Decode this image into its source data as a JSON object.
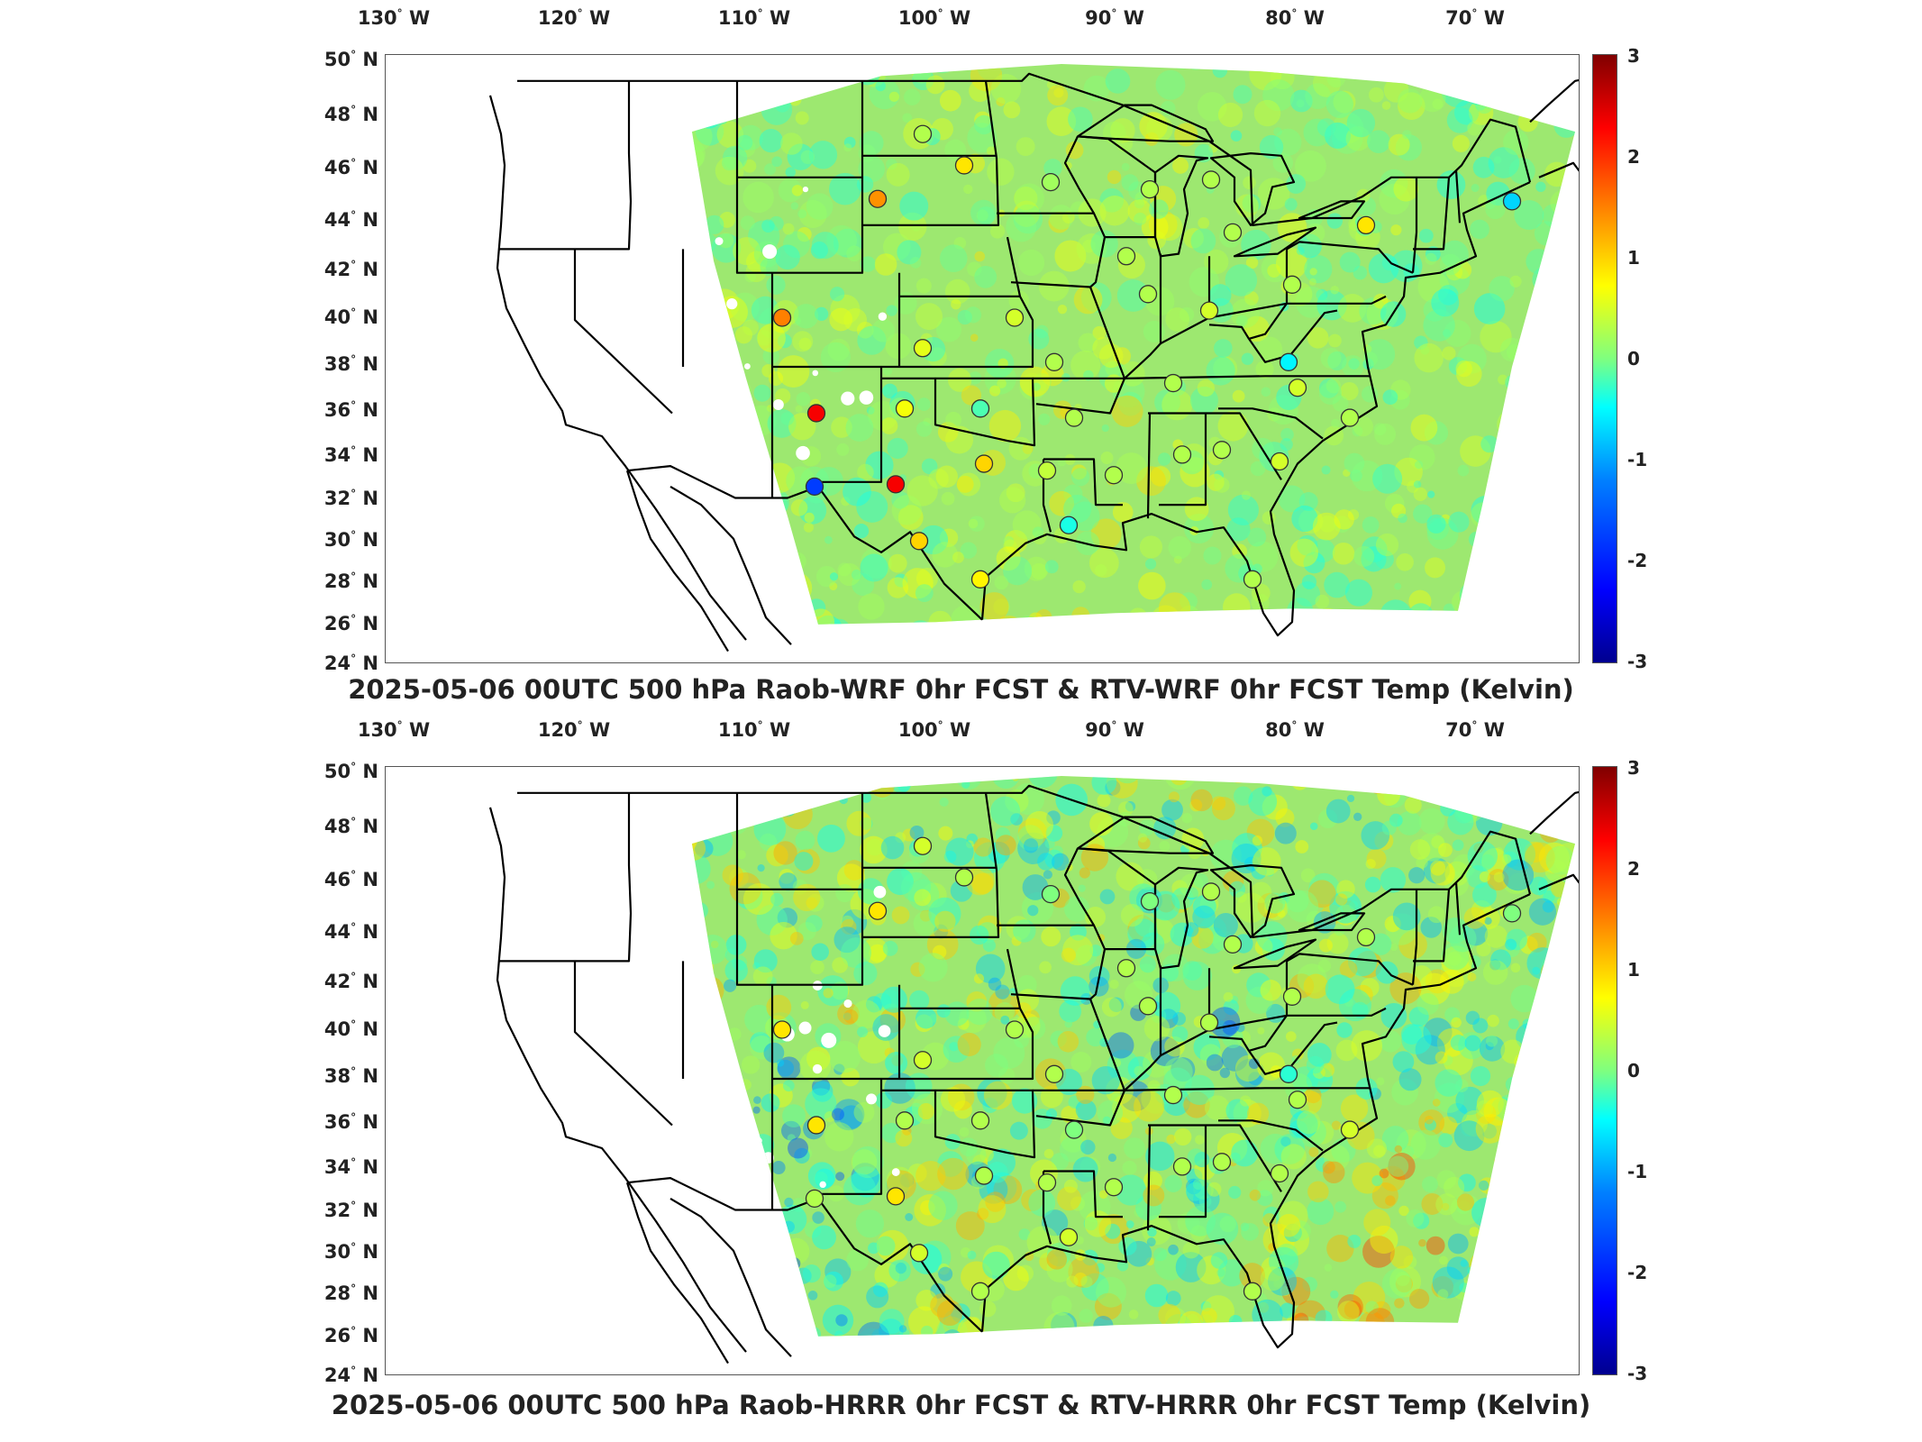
{
  "panels": [
    {
      "title": "2025-05-06 00UTC 500 hPa Raob-WRF 0hr FCST & RTV-WRF 0hr FCST Temp (Kelvin)",
      "lon_labels": [
        "130",
        "120",
        "110",
        "100",
        "90",
        "80",
        "70"
      ],
      "lat_labels": [
        "50",
        "48",
        "46",
        "44",
        "42",
        "40",
        "38",
        "36",
        "34",
        "32",
        "30",
        "28",
        "26",
        "24"
      ],
      "lon_suffix": "W",
      "lat_suffix": "N",
      "colorbar_ticks": [
        "3",
        "2",
        "1",
        "0",
        "-1",
        "-2",
        "-3"
      ],
      "stations": [
        {
          "lon": -100.7,
          "lat": 46.8,
          "v": 0.3
        },
        {
          "lon": -98.4,
          "lat": 45.5,
          "v": 0.9
        },
        {
          "lon": -103.2,
          "lat": 44.1,
          "v": 1.4
        },
        {
          "lon": -93.6,
          "lat": 44.8,
          "v": 0.2
        },
        {
          "lon": -88.1,
          "lat": 44.5,
          "v": 0.3
        },
        {
          "lon": -84.7,
          "lat": 44.9,
          "v": 0.3
        },
        {
          "lon": -68.0,
          "lat": 44.0,
          "v": -1.0
        },
        {
          "lon": -89.4,
          "lat": 41.7,
          "v": 0.3
        },
        {
          "lon": -83.5,
          "lat": 42.7,
          "v": 0.3
        },
        {
          "lon": -76.1,
          "lat": 43.0,
          "v": 0.9
        },
        {
          "lon": -108.5,
          "lat": 39.1,
          "v": 1.5
        },
        {
          "lon": -88.2,
          "lat": 40.1,
          "v": 0.3
        },
        {
          "lon": -80.2,
          "lat": 40.5,
          "v": 0.3
        },
        {
          "lon": -95.6,
          "lat": 39.1,
          "v": 0.5
        },
        {
          "lon": -84.8,
          "lat": 39.4,
          "v": 0.5
        },
        {
          "lon": -100.7,
          "lat": 37.8,
          "v": 0.6
        },
        {
          "lon": -93.4,
          "lat": 37.2,
          "v": 0.3
        },
        {
          "lon": -80.4,
          "lat": 37.2,
          "v": -0.8
        },
        {
          "lon": -86.8,
          "lat": 36.3,
          "v": 0.3
        },
        {
          "lon": -79.9,
          "lat": 36.1,
          "v": 0.5
        },
        {
          "lon": -106.6,
          "lat": 35.0,
          "v": 2.3
        },
        {
          "lon": -101.7,
          "lat": 35.2,
          "v": 0.7
        },
        {
          "lon": -97.5,
          "lat": 35.2,
          "v": -0.3
        },
        {
          "lon": -92.3,
          "lat": 34.8,
          "v": 0.3
        },
        {
          "lon": -77.0,
          "lat": 34.8,
          "v": 0.3
        },
        {
          "lon": -97.3,
          "lat": 32.8,
          "v": 1.0
        },
        {
          "lon": -93.8,
          "lat": 32.5,
          "v": 0.4
        },
        {
          "lon": -90.1,
          "lat": 32.3,
          "v": 0.3
        },
        {
          "lon": -86.3,
          "lat": 33.2,
          "v": 0.3
        },
        {
          "lon": -84.1,
          "lat": 33.4,
          "v": 0.3
        },
        {
          "lon": -80.9,
          "lat": 32.9,
          "v": 0.5
        },
        {
          "lon": -106.7,
          "lat": 31.8,
          "v": -1.9
        },
        {
          "lon": -102.2,
          "lat": 31.9,
          "v": 2.3
        },
        {
          "lon": -92.6,
          "lat": 30.1,
          "v": -0.6
        },
        {
          "lon": -100.9,
          "lat": 29.4,
          "v": 1.0
        },
        {
          "lon": -97.5,
          "lat": 27.7,
          "v": 0.8
        },
        {
          "lon": -82.4,
          "lat": 27.7,
          "v": 0.3
        }
      ]
    },
    {
      "title": "2025-05-06 00UTC 500 hPa Raob-HRRR 0hr FCST & RTV-HRRR 0hr FCST Temp (Kelvin)",
      "lon_labels": [
        "130",
        "120",
        "110",
        "100",
        "90",
        "80",
        "70"
      ],
      "lat_labels": [
        "50",
        "48",
        "46",
        "44",
        "42",
        "40",
        "38",
        "36",
        "34",
        "32",
        "30",
        "28",
        "26",
        "24"
      ],
      "lon_suffix": "W",
      "lat_suffix": "N",
      "colorbar_ticks": [
        "3",
        "2",
        "1",
        "0",
        "-1",
        "-2",
        "-3"
      ],
      "stations": [
        {
          "lon": -100.7,
          "lat": 46.8,
          "v": 0.5
        },
        {
          "lon": -98.4,
          "lat": 45.5,
          "v": 0.3
        },
        {
          "lon": -103.2,
          "lat": 44.1,
          "v": 0.9
        },
        {
          "lon": -93.6,
          "lat": 44.8,
          "v": 0.0
        },
        {
          "lon": -88.1,
          "lat": 44.5,
          "v": 0.0
        },
        {
          "lon": -84.7,
          "lat": 44.9,
          "v": 0.3
        },
        {
          "lon": -68.0,
          "lat": 44.0,
          "v": 0.0
        },
        {
          "lon": -89.4,
          "lat": 41.7,
          "v": 0.3
        },
        {
          "lon": -83.5,
          "lat": 42.7,
          "v": 0.3
        },
        {
          "lon": -76.1,
          "lat": 43.0,
          "v": 0.3
        },
        {
          "lon": -108.5,
          "lat": 39.1,
          "v": 0.9
        },
        {
          "lon": -88.2,
          "lat": 40.1,
          "v": 0.3
        },
        {
          "lon": -80.2,
          "lat": 40.5,
          "v": 0.3
        },
        {
          "lon": -95.6,
          "lat": 39.1,
          "v": 0.3
        },
        {
          "lon": -84.8,
          "lat": 39.4,
          "v": 0.3
        },
        {
          "lon": -100.7,
          "lat": 37.8,
          "v": 0.5
        },
        {
          "lon": -93.4,
          "lat": 37.2,
          "v": 0.3
        },
        {
          "lon": -80.4,
          "lat": 37.2,
          "v": -0.5
        },
        {
          "lon": -86.8,
          "lat": 36.3,
          "v": 0.3
        },
        {
          "lon": -79.9,
          "lat": 36.1,
          "v": 0.3
        },
        {
          "lon": -106.6,
          "lat": 35.0,
          "v": 0.9
        },
        {
          "lon": -101.7,
          "lat": 35.2,
          "v": 0.3
        },
        {
          "lon": -97.5,
          "lat": 35.2,
          "v": 0.3
        },
        {
          "lon": -92.3,
          "lat": 34.8,
          "v": 0.0
        },
        {
          "lon": -77.0,
          "lat": 34.8,
          "v": 0.5
        },
        {
          "lon": -97.3,
          "lat": 32.8,
          "v": 0.3
        },
        {
          "lon": -93.8,
          "lat": 32.5,
          "v": 0.3
        },
        {
          "lon": -90.1,
          "lat": 32.3,
          "v": 0.3
        },
        {
          "lon": -86.3,
          "lat": 33.2,
          "v": 0.3
        },
        {
          "lon": -84.1,
          "lat": 33.4,
          "v": 0.3
        },
        {
          "lon": -80.9,
          "lat": 32.9,
          "v": 0.3
        },
        {
          "lon": -106.7,
          "lat": 31.8,
          "v": 0.3
        },
        {
          "lon": -102.2,
          "lat": 31.9,
          "v": 0.9
        },
        {
          "lon": -92.6,
          "lat": 30.1,
          "v": 0.5
        },
        {
          "lon": -100.9,
          "lat": 29.4,
          "v": 0.5
        },
        {
          "lon": -97.5,
          "lat": 27.7,
          "v": 0.3
        },
        {
          "lon": -82.4,
          "lat": 27.7,
          "v": 0.3
        }
      ]
    }
  ],
  "colors": {
    "scale": [
      "#00008f",
      "#0000ff",
      "#0080ff",
      "#00ffff",
      "#7fff7f",
      "#ffff00",
      "#ff8000",
      "#ff0000",
      "#800000"
    ],
    "field_base": "#9de870",
    "land_outline": "#000000"
  }
}
